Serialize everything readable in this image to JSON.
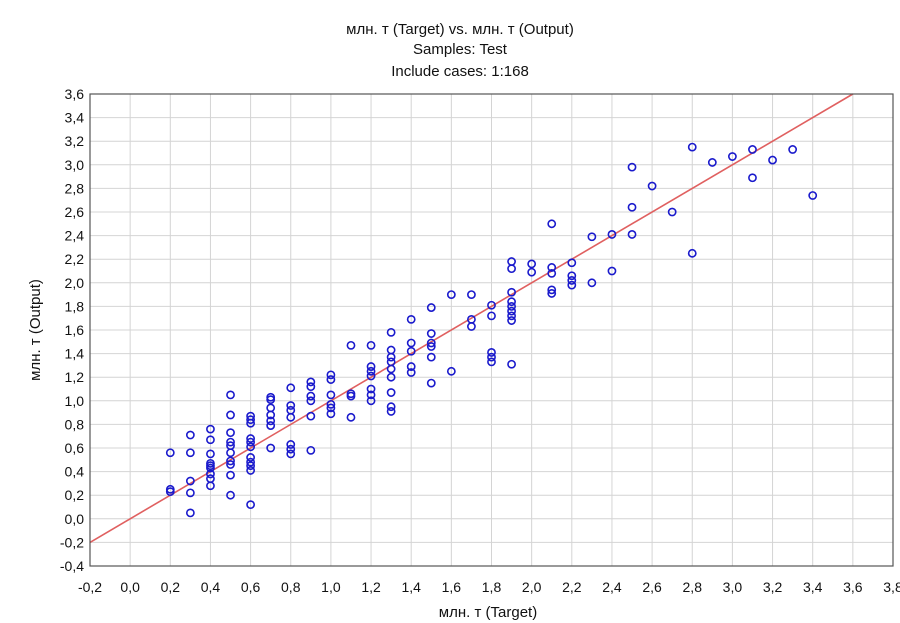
{
  "chart_data": {
    "type": "scatter",
    "title_lines": [
      "млн. т (Target) vs. млн. т (Output)",
      "Samples: Test",
      "Include cases: 1:168"
    ],
    "xlabel": "млн. т (Target)",
    "ylabel": "млн. т (Output)",
    "xlim": [
      -0.2,
      3.8
    ],
    "ylim": [
      -0.4,
      3.6
    ],
    "x_ticks": [
      "-0,2",
      "0,0",
      "0,2",
      "0,4",
      "0,6",
      "0,8",
      "1,0",
      "1,2",
      "1,4",
      "1,6",
      "1,8",
      "2,0",
      "2,2",
      "2,4",
      "2,6",
      "2,8",
      "3,0",
      "3,2",
      "3,4",
      "3,6",
      "3,8"
    ],
    "y_ticks": [
      "-0,4",
      "-0,2",
      "0,0",
      "0,2",
      "0,4",
      "0,6",
      "0,8",
      "1,0",
      "1,2",
      "1,4",
      "1,6",
      "1,8",
      "2,0",
      "2,2",
      "2,4",
      "2,6",
      "2,8",
      "3,0",
      "3,2",
      "3,4",
      "3,6"
    ],
    "grid": true,
    "reference_line": {
      "from": [
        -0.2,
        -0.2
      ],
      "to": [
        3.6,
        3.6
      ],
      "color": "#e06060"
    },
    "marker_color": "#1a1acc",
    "series": [
      {
        "points": [
          [
            0.2,
            0.56
          ],
          [
            0.2,
            0.25
          ],
          [
            0.2,
            0.23
          ],
          [
            0.3,
            0.71
          ],
          [
            0.3,
            0.56
          ],
          [
            0.3,
            0.32
          ],
          [
            0.3,
            0.22
          ],
          [
            0.3,
            0.05
          ],
          [
            0.4,
            0.76
          ],
          [
            0.4,
            0.67
          ],
          [
            0.4,
            0.55
          ],
          [
            0.4,
            0.47
          ],
          [
            0.4,
            0.45
          ],
          [
            0.4,
            0.43
          ],
          [
            0.4,
            0.38
          ],
          [
            0.4,
            0.34
          ],
          [
            0.4,
            0.28
          ],
          [
            0.5,
            1.05
          ],
          [
            0.5,
            0.88
          ],
          [
            0.5,
            0.73
          ],
          [
            0.5,
            0.65
          ],
          [
            0.5,
            0.62
          ],
          [
            0.5,
            0.56
          ],
          [
            0.5,
            0.49
          ],
          [
            0.5,
            0.46
          ],
          [
            0.5,
            0.37
          ],
          [
            0.5,
            0.2
          ],
          [
            0.6,
            0.87
          ],
          [
            0.6,
            0.84
          ],
          [
            0.6,
            0.81
          ],
          [
            0.6,
            0.68
          ],
          [
            0.6,
            0.65
          ],
          [
            0.6,
            0.61
          ],
          [
            0.6,
            0.52
          ],
          [
            0.6,
            0.48
          ],
          [
            0.6,
            0.45
          ],
          [
            0.6,
            0.41
          ],
          [
            0.6,
            0.12
          ],
          [
            0.7,
            1.03
          ],
          [
            0.7,
            1.01
          ],
          [
            0.7,
            0.94
          ],
          [
            0.7,
            0.88
          ],
          [
            0.7,
            0.83
          ],
          [
            0.7,
            0.79
          ],
          [
            0.7,
            0.6
          ],
          [
            0.8,
            1.11
          ],
          [
            0.8,
            0.96
          ],
          [
            0.8,
            0.92
          ],
          [
            0.8,
            0.86
          ],
          [
            0.8,
            0.63
          ],
          [
            0.8,
            0.59
          ],
          [
            0.8,
            0.55
          ],
          [
            0.9,
            1.16
          ],
          [
            0.9,
            1.12
          ],
          [
            0.9,
            1.04
          ],
          [
            0.9,
            1.0
          ],
          [
            0.9,
            0.87
          ],
          [
            0.9,
            0.58
          ],
          [
            1.0,
            1.22
          ],
          [
            1.0,
            1.18
          ],
          [
            1.0,
            1.05
          ],
          [
            1.0,
            0.97
          ],
          [
            1.0,
            0.94
          ],
          [
            1.0,
            0.89
          ],
          [
            1.1,
            1.47
          ],
          [
            1.1,
            1.06
          ],
          [
            1.1,
            1.04
          ],
          [
            1.1,
            0.86
          ],
          [
            1.2,
            1.47
          ],
          [
            1.2,
            1.29
          ],
          [
            1.2,
            1.25
          ],
          [
            1.2,
            1.21
          ],
          [
            1.2,
            1.1
          ],
          [
            1.2,
            1.05
          ],
          [
            1.2,
            1.0
          ],
          [
            1.3,
            1.58
          ],
          [
            1.3,
            1.43
          ],
          [
            1.3,
            1.37
          ],
          [
            1.3,
            1.33
          ],
          [
            1.3,
            1.27
          ],
          [
            1.3,
            1.2
          ],
          [
            1.3,
            1.07
          ],
          [
            1.3,
            0.95
          ],
          [
            1.3,
            0.91
          ],
          [
            1.4,
            1.69
          ],
          [
            1.4,
            1.49
          ],
          [
            1.4,
            1.42
          ],
          [
            1.4,
            1.29
          ],
          [
            1.4,
            1.24
          ],
          [
            1.5,
            1.79
          ],
          [
            1.5,
            1.57
          ],
          [
            1.5,
            1.49
          ],
          [
            1.5,
            1.46
          ],
          [
            1.5,
            1.37
          ],
          [
            1.5,
            1.15
          ],
          [
            1.6,
            1.9
          ],
          [
            1.6,
            1.25
          ],
          [
            1.7,
            1.9
          ],
          [
            1.7,
            1.69
          ],
          [
            1.7,
            1.63
          ],
          [
            1.8,
            1.81
          ],
          [
            1.8,
            1.72
          ],
          [
            1.8,
            1.41
          ],
          [
            1.8,
            1.37
          ],
          [
            1.8,
            1.33
          ],
          [
            1.9,
            2.18
          ],
          [
            1.9,
            2.12
          ],
          [
            1.9,
            1.92
          ],
          [
            1.9,
            1.84
          ],
          [
            1.9,
            1.8
          ],
          [
            1.9,
            1.76
          ],
          [
            1.9,
            1.72
          ],
          [
            1.9,
            1.68
          ],
          [
            1.9,
            1.31
          ],
          [
            2.0,
            2.16
          ],
          [
            2.0,
            2.09
          ],
          [
            2.1,
            2.5
          ],
          [
            2.1,
            2.13
          ],
          [
            2.1,
            2.08
          ],
          [
            2.1,
            1.94
          ],
          [
            2.1,
            1.91
          ],
          [
            2.2,
            2.17
          ],
          [
            2.2,
            2.06
          ],
          [
            2.2,
            2.02
          ],
          [
            2.2,
            1.98
          ],
          [
            2.3,
            2.39
          ],
          [
            2.3,
            2.0
          ],
          [
            2.4,
            2.41
          ],
          [
            2.4,
            2.1
          ],
          [
            2.5,
            2.98
          ],
          [
            2.5,
            2.64
          ],
          [
            2.5,
            2.41
          ],
          [
            2.6,
            2.82
          ],
          [
            2.7,
            2.6
          ],
          [
            2.8,
            3.15
          ],
          [
            2.8,
            2.25
          ],
          [
            2.9,
            3.02
          ],
          [
            3.0,
            3.07
          ],
          [
            3.1,
            3.13
          ],
          [
            3.1,
            2.89
          ],
          [
            3.2,
            3.04
          ],
          [
            3.3,
            3.13
          ],
          [
            3.4,
            2.74
          ]
        ]
      }
    ]
  }
}
